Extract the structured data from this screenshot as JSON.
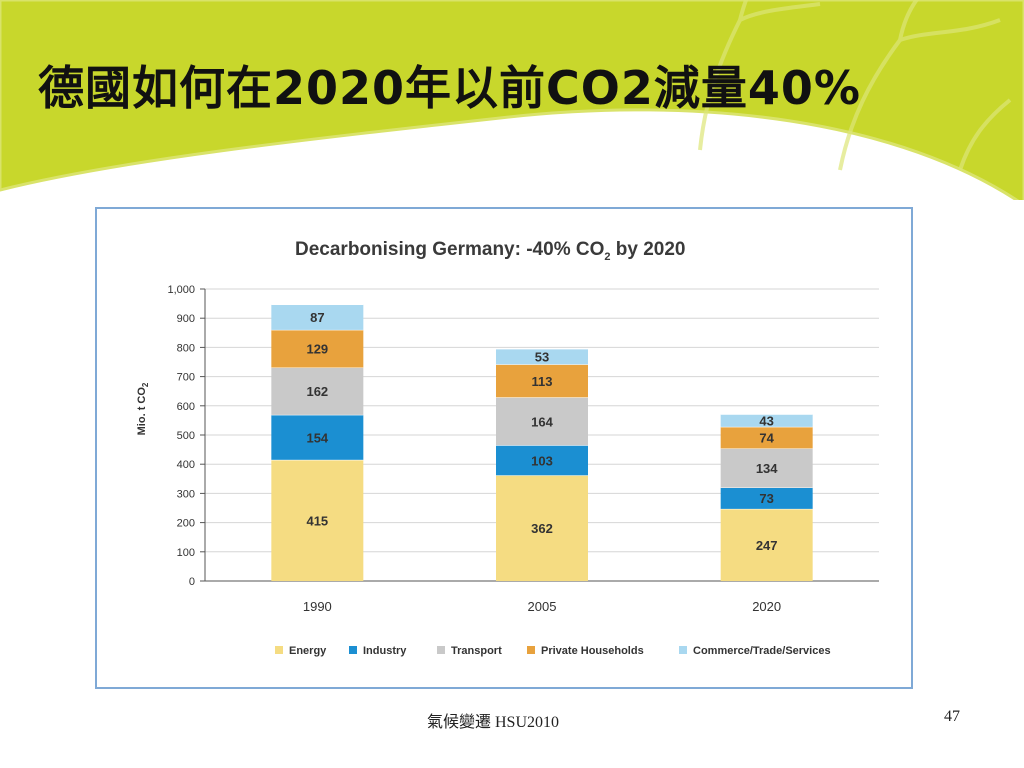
{
  "slide": {
    "title": "德國如何在2020年以前CO2減量40%",
    "footer_text": "氣候變遷 HSU2010",
    "page_number": "47"
  },
  "colors": {
    "banner": "#c8d72c",
    "Energy": "#f5dc82",
    "Industry": "#1b8fd2",
    "Transport": "#c9c9c9",
    "Private Households": "#e8a23d",
    "Commerce/Trade/Services": "#a9d8f0"
  },
  "chart_data": {
    "type": "bar",
    "stacked": true,
    "title": "Decarbonising Germany: -40% CO2 by 2020",
    "ylabel": "Mio. t CO2",
    "xlabel": "",
    "categories": [
      "1990",
      "2005",
      "2020"
    ],
    "series": [
      {
        "name": "Energy",
        "values": [
          415,
          362,
          247
        ]
      },
      {
        "name": "Industry",
        "values": [
          154,
          103,
          73
        ]
      },
      {
        "name": "Transport",
        "values": [
          162,
          164,
          134
        ]
      },
      {
        "name": "Private Households",
        "values": [
          129,
          113,
          74
        ]
      },
      {
        "name": "Commerce/Trade/Services",
        "values": [
          87,
          53,
          43
        ]
      }
    ],
    "ylim": [
      0,
      1000
    ],
    "yticks": [
      "0",
      "100",
      "200",
      "300",
      "400",
      "500",
      "600",
      "700",
      "800",
      "900",
      "1,000"
    ],
    "grid": true,
    "legend": "bottom"
  }
}
